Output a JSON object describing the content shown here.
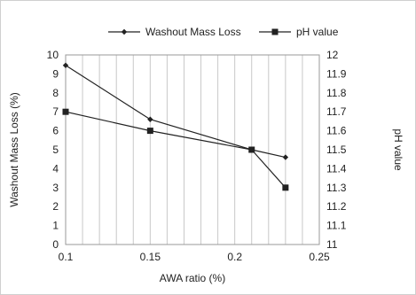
{
  "chart_data": {
    "type": "line",
    "title": "",
    "xlabel": "AWA ratio (%)",
    "ylabel_left": "Washout Mass  Loss (%)",
    "ylabel_right": "pH value",
    "xlim": [
      0.1,
      0.25
    ],
    "x_ticks": [
      "0.1",
      "0.15",
      "0.2",
      "0.25"
    ],
    "ylim_left": [
      0,
      10
    ],
    "y_ticks_left": [
      "0",
      "1",
      "2",
      "3",
      "4",
      "5",
      "6",
      "7",
      "8",
      "9",
      "10"
    ],
    "ylim_right": [
      11,
      12
    ],
    "y_ticks_right": [
      "11",
      "11.1",
      "11.2",
      "11.3",
      "11.4",
      "11.5",
      "11.6",
      "11.7",
      "11.8",
      "11.9",
      "12"
    ],
    "grid": "vertical",
    "legend_position": "top",
    "series": [
      {
        "name": "Washout Mass Loss",
        "axis": "left",
        "marker": "diamond",
        "color": "#222222",
        "x": [
          0.1,
          0.15,
          0.21,
          0.23
        ],
        "y": [
          9.45,
          6.6,
          5.0,
          4.6
        ]
      },
      {
        "name": "pH value",
        "axis": "right",
        "marker": "square",
        "color": "#222222",
        "x": [
          0.1,
          0.15,
          0.21,
          0.23
        ],
        "y": [
          11.7,
          11.6,
          11.5,
          11.3
        ]
      }
    ]
  }
}
